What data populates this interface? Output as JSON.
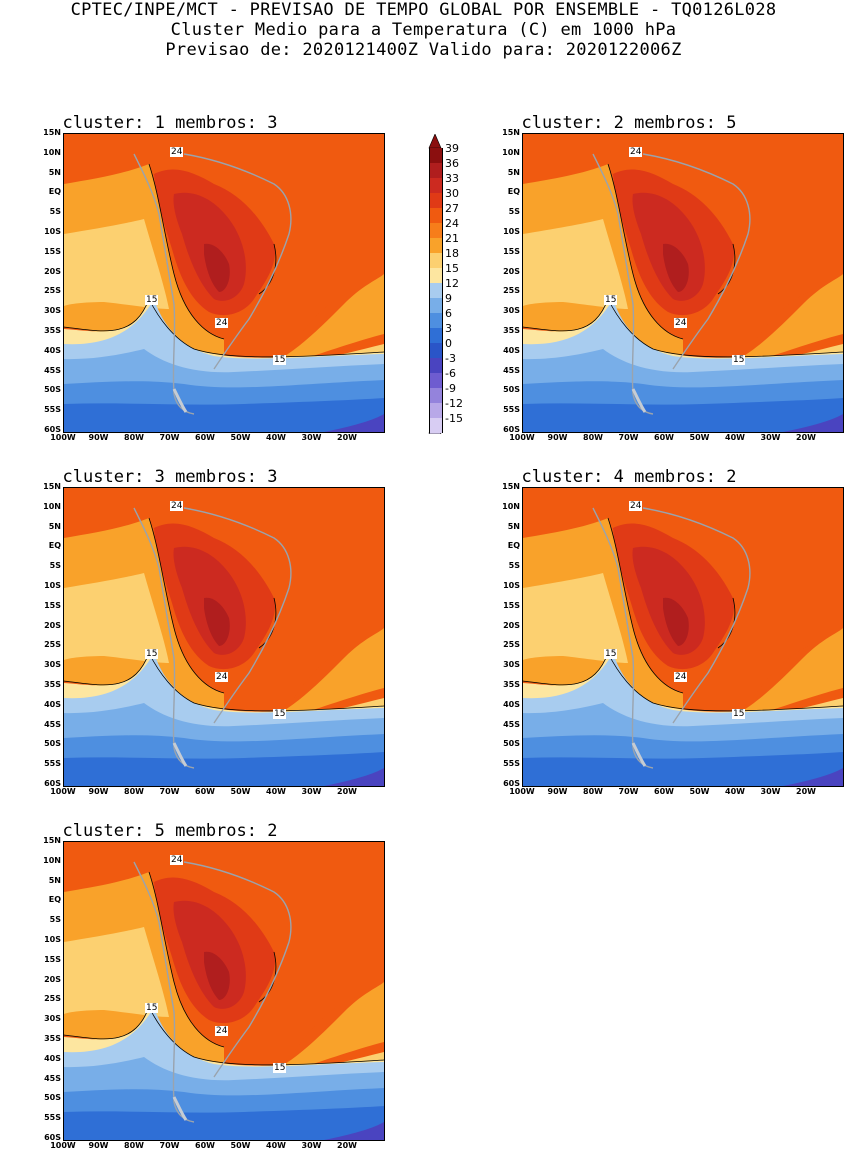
{
  "header": {
    "line1": "CPTEC/INPE/MCT - PREVISAO DE TEMPO GLOBAL POR ENSEMBLE - TQ0126L028",
    "line2": "Cluster Medio para a Temperatura (C) em 1000 hPa",
    "line3": "Previsao de: 2020121400Z   Valido para: 2020122006Z"
  },
  "panels": [
    {
      "title": "cluster: 1  membros: 3"
    },
    {
      "title": "cluster: 2  membros: 5"
    },
    {
      "title": "cluster: 3  membros: 3"
    },
    {
      "title": "cluster: 4  membros: 2"
    },
    {
      "title": "cluster: 5  membros: 2"
    }
  ],
  "lat_labels": [
    "15N",
    "10N",
    "5N",
    "EQ",
    "5S",
    "10S",
    "15S",
    "20S",
    "25S",
    "30S",
    "35S",
    "40S",
    "45S",
    "50S",
    "55S",
    "60S"
  ],
  "lon_labels": [
    "100W",
    "90W",
    "80W",
    "70W",
    "60W",
    "50W",
    "40W",
    "30W",
    "20W"
  ],
  "contour_labels": {
    "c24": "24",
    "c15": "15"
  },
  "colorbar": {
    "labels": [
      "39",
      "36",
      "33",
      "30",
      "27",
      "24",
      "21",
      "18",
      "15",
      "12",
      "9",
      "6",
      "3",
      "0",
      "-3",
      "-6",
      "-9",
      "-12",
      "-15"
    ],
    "colors": [
      "#8b0f0f",
      "#b01e1e",
      "#cc2a20",
      "#e03a16",
      "#f05a10",
      "#f77d1a",
      "#f9a22a",
      "#fcd070",
      "#fde6a0",
      "#a8ccef",
      "#78aee8",
      "#4e8fe0",
      "#2f6fd6",
      "#2a55c8",
      "#4a44c0",
      "#6e5cd0",
      "#9483dc",
      "#b8a8e8",
      "#d8cdf3"
    ]
  }
}
